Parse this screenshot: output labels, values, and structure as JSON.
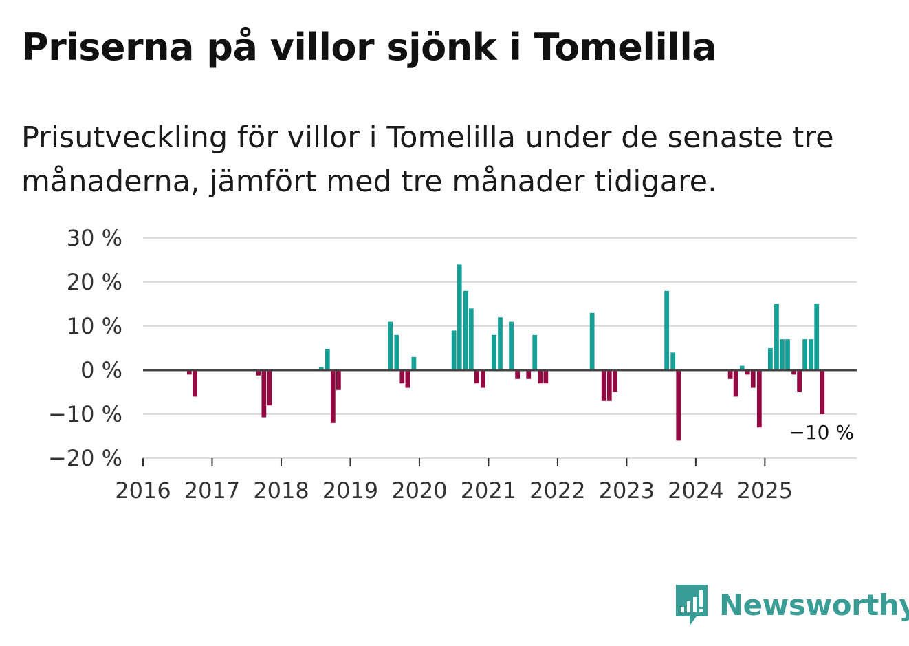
{
  "header": {
    "title": "Priserna på villor sjönk i Tomelilla",
    "subtitle": "Prisutveckling för villor i Tomelilla under de senaste tre månaderna, jämfört med tre månader tidigare."
  },
  "brand": {
    "name": "Newsworthy",
    "color": "#3a9e97"
  },
  "colors": {
    "positive": "#14a096",
    "negative": "#930a42",
    "zero_line": "#444444",
    "grid": "#dddddd"
  },
  "chart_data": {
    "type": "bar",
    "title": "Priserna på villor sjönk i Tomelilla",
    "xlabel": "",
    "ylabel": "",
    "ylim": [
      -20,
      30
    ],
    "y_ticks": [
      30,
      20,
      10,
      0,
      -10,
      -20
    ],
    "y_tick_labels": [
      "30 %",
      "20 %",
      "10 %",
      "0 %",
      "−10 %",
      "−20 %"
    ],
    "x_ticks": [
      "2016",
      "2017",
      "2018",
      "2019",
      "2020",
      "2021",
      "2022",
      "2023",
      "2024",
      "2025"
    ],
    "x_range_years": [
      2016,
      2026.33
    ],
    "series": [
      {
        "name": "Prisutveckling",
        "unit": "%",
        "points": [
          {
            "x": 2016.67,
            "y": -1
          },
          {
            "x": 2016.75,
            "y": -6
          },
          {
            "x": 2017.67,
            "y": -1.2
          },
          {
            "x": 2017.75,
            "y": -10.7
          },
          {
            "x": 2017.83,
            "y": -8
          },
          {
            "x": 2018.58,
            "y": 0.7
          },
          {
            "x": 2018.67,
            "y": 4.8
          },
          {
            "x": 2018.75,
            "y": -12
          },
          {
            "x": 2018.83,
            "y": -4.5
          },
          {
            "x": 2019.58,
            "y": 11
          },
          {
            "x": 2019.67,
            "y": 8
          },
          {
            "x": 2019.75,
            "y": -3
          },
          {
            "x": 2019.83,
            "y": -4
          },
          {
            "x": 2019.92,
            "y": 3
          },
          {
            "x": 2020.5,
            "y": 9
          },
          {
            "x": 2020.58,
            "y": 24
          },
          {
            "x": 2020.67,
            "y": 18
          },
          {
            "x": 2020.75,
            "y": 14
          },
          {
            "x": 2020.83,
            "y": -3
          },
          {
            "x": 2020.92,
            "y": -4
          },
          {
            "x": 2021.08,
            "y": 8
          },
          {
            "x": 2021.17,
            "y": 12
          },
          {
            "x": 2021.33,
            "y": 11
          },
          {
            "x": 2021.42,
            "y": -2
          },
          {
            "x": 2021.58,
            "y": -2
          },
          {
            "x": 2021.67,
            "y": 8
          },
          {
            "x": 2021.75,
            "y": -3
          },
          {
            "x": 2021.83,
            "y": -3
          },
          {
            "x": 2022.5,
            "y": 13
          },
          {
            "x": 2022.67,
            "y": -7
          },
          {
            "x": 2022.75,
            "y": -7
          },
          {
            "x": 2022.83,
            "y": -5
          },
          {
            "x": 2023.58,
            "y": 18
          },
          {
            "x": 2023.67,
            "y": 4
          },
          {
            "x": 2023.75,
            "y": -16
          },
          {
            "x": 2024.5,
            "y": -2
          },
          {
            "x": 2024.58,
            "y": -6
          },
          {
            "x": 2024.67,
            "y": 1
          },
          {
            "x": 2024.75,
            "y": -1
          },
          {
            "x": 2024.83,
            "y": -4
          },
          {
            "x": 2024.92,
            "y": -13
          },
          {
            "x": 2025.08,
            "y": 5
          },
          {
            "x": 2025.17,
            "y": 15
          },
          {
            "x": 2025.25,
            "y": 7
          },
          {
            "x": 2025.33,
            "y": 7
          },
          {
            "x": 2025.42,
            "y": -1
          },
          {
            "x": 2025.5,
            "y": -5
          },
          {
            "x": 2025.58,
            "y": 7
          },
          {
            "x": 2025.67,
            "y": 7
          },
          {
            "x": 2025.75,
            "y": 15
          },
          {
            "x": 2025.83,
            "y": -10
          }
        ]
      }
    ],
    "annotations": [
      {
        "text": "−10 %",
        "x": 2025.83,
        "y": -10
      }
    ],
    "grid": true,
    "legend": "none"
  }
}
